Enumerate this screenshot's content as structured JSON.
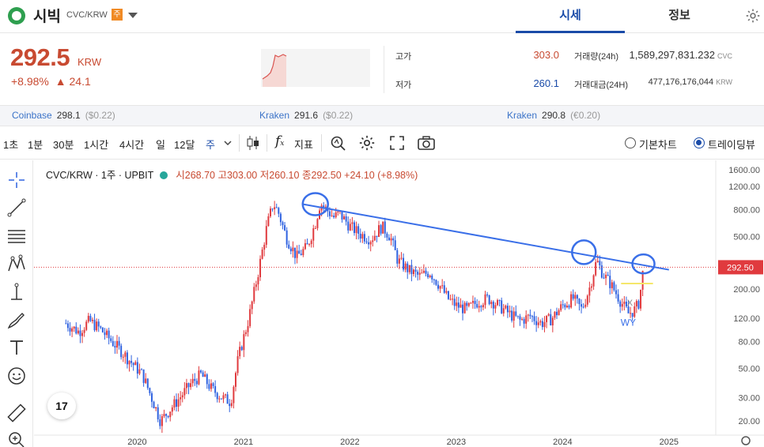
{
  "header": {
    "coin_name": "시빅",
    "pair": "CVC/KRW",
    "tag": "주",
    "tabs": [
      "시세",
      "정보"
    ]
  },
  "price": {
    "value": "292.5",
    "unit": "KRW",
    "change_pct": "+8.98%",
    "change_amt": "▲ 24.1"
  },
  "stats": {
    "high_label": "고가",
    "high_value": "303.0",
    "low_label": "저가",
    "low_value": "260.1",
    "volume_label": "거래량(24h)",
    "volume_value": "1,589,297,831.232",
    "volume_unit": "CVC",
    "amount_label": "거래대금(24H)",
    "amount_value": "477,176,176,044",
    "amount_unit": "KRW"
  },
  "exchanges": [
    {
      "name": "Coinbase",
      "price": "298.1",
      "delta": "($0.22)"
    },
    {
      "name": "Kraken",
      "price": "291.6",
      "delta": "($0.22)"
    },
    {
      "name": "Kraken",
      "price": "290.8",
      "delta": "(€0.20)"
    }
  ],
  "toolbar": {
    "intervals": [
      "1초",
      "1분",
      "30분",
      "1시간",
      "4시간",
      "일",
      "12달",
      "주"
    ],
    "indicators": "지표",
    "basic_chart": "기본차트",
    "trading_view": "트레이딩뷰"
  },
  "legend": {
    "symbol": "CVC/KRW · 1주 · UPBIT",
    "open": "시268.70",
    "high": "고303.00",
    "low": "저260.10",
    "close": "종292.50",
    "change": "+24.10 (+8.98%)"
  },
  "tv_logo": "17",
  "annotation_text": "WY",
  "annotation_x": "X",
  "colors": {
    "up": "#e03a3e",
    "down": "#2f62e0",
    "trend": "#3a6fe8",
    "accent": "#1a4ba8"
  },
  "chart_data": {
    "type": "candlestick",
    "scale": "log",
    "y_ticks": [
      "1600.00",
      "1200.00",
      "800.00",
      "500.00",
      "200.00",
      "120.00",
      "80.00",
      "50.00",
      "30.00",
      "20.00"
    ],
    "x_ticks": [
      "2020",
      "2021",
      "2022",
      "2023",
      "2024",
      "2025"
    ],
    "last_price_label": "292.50",
    "ylim": [
      18,
      1800
    ],
    "series_close": [
      [
        2019.33,
        110
      ],
      [
        2019.45,
        95
      ],
      [
        2019.55,
        115
      ],
      [
        2019.65,
        100
      ],
      [
        2019.75,
        82
      ],
      [
        2019.85,
        68
      ],
      [
        2019.95,
        55
      ],
      [
        2020.05,
        45
      ],
      [
        2020.15,
        28
      ],
      [
        2020.22,
        20
      ],
      [
        2020.3,
        24
      ],
      [
        2020.4,
        30
      ],
      [
        2020.5,
        38
      ],
      [
        2020.6,
        45
      ],
      [
        2020.7,
        35
      ],
      [
        2020.8,
        30
      ],
      [
        2020.88,
        28
      ],
      [
        2020.95,
        60
      ],
      [
        2021.05,
        120
      ],
      [
        2021.15,
        300
      ],
      [
        2021.22,
        600
      ],
      [
        2021.28,
        900
      ],
      [
        2021.33,
        750
      ],
      [
        2021.4,
        500
      ],
      [
        2021.5,
        350
      ],
      [
        2021.6,
        420
      ],
      [
        2021.68,
        650
      ],
      [
        2021.72,
        900
      ],
      [
        2021.78,
        800
      ],
      [
        2021.85,
        700
      ],
      [
        2021.9,
        750
      ],
      [
        2022.0,
        600
      ],
      [
        2022.1,
        520
      ],
      [
        2022.2,
        480
      ],
      [
        2022.3,
        600
      ],
      [
        2022.38,
        500
      ],
      [
        2022.45,
        330
      ],
      [
        2022.55,
        280
      ],
      [
        2022.65,
        250
      ],
      [
        2022.75,
        270
      ],
      [
        2022.85,
        210
      ],
      [
        2022.92,
        170
      ],
      [
        2023.0,
        150
      ],
      [
        2023.1,
        140
      ],
      [
        2023.2,
        160
      ],
      [
        2023.3,
        170
      ],
      [
        2023.4,
        150
      ],
      [
        2023.5,
        130
      ],
      [
        2023.6,
        115
      ],
      [
        2023.7,
        125
      ],
      [
        2023.8,
        110
      ],
      [
        2023.9,
        120
      ],
      [
        2024.0,
        150
      ],
      [
        2024.1,
        170
      ],
      [
        2024.18,
        140
      ],
      [
        2024.25,
        200
      ],
      [
        2024.32,
        330
      ],
      [
        2024.38,
        260
      ],
      [
        2024.45,
        220
      ],
      [
        2024.55,
        160
      ],
      [
        2024.62,
        130
      ],
      [
        2024.68,
        140
      ],
      [
        2024.72,
        160
      ],
      [
        2024.76,
        292.5
      ]
    ],
    "trendline": [
      [
        2021.6,
        880
      ],
      [
        2025.0,
        280
      ]
    ],
    "highlight_line": {
      "x_range": [
        2024.55,
        2024.85
      ],
      "y": 220
    }
  }
}
